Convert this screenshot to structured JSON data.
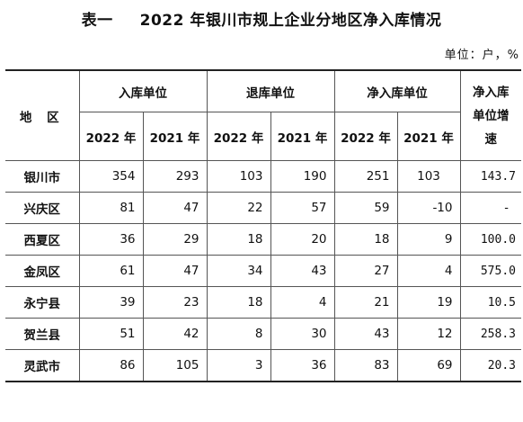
{
  "title": {
    "prefix": "表一",
    "main": "2022 年银川市规上企业分地区净入库情况"
  },
  "unit": "单位：户，%",
  "headers": {
    "region": "地 区",
    "group_entry": "入库单位",
    "group_exit": "退库单位",
    "group_net": "净入库单位",
    "growth": [
      "净入库",
      "单位增",
      "速"
    ],
    "y2022": "2022 年",
    "y2021": "2021 年"
  },
  "rows": [
    {
      "region": "银川市",
      "entry_2022": "354",
      "entry_2021": "293",
      "exit_2022": "103",
      "exit_2021": "190",
      "net_2022": "251",
      "net_2021": "103",
      "growth": "143.7"
    },
    {
      "region": "兴庆区",
      "entry_2022": "81",
      "entry_2021": "47",
      "exit_2022": "22",
      "exit_2021": "57",
      "net_2022": "59",
      "net_2021": "-10",
      "growth": "-"
    },
    {
      "region": "西夏区",
      "entry_2022": "36",
      "entry_2021": "29",
      "exit_2022": "18",
      "exit_2021": "20",
      "net_2022": "18",
      "net_2021": "9",
      "growth": "100.0"
    },
    {
      "region": "金凤区",
      "entry_2022": "61",
      "entry_2021": "47",
      "exit_2022": "34",
      "exit_2021": "43",
      "net_2022": "27",
      "net_2021": "4",
      "growth": "575.0"
    },
    {
      "region": "永宁县",
      "entry_2022": "39",
      "entry_2021": "23",
      "exit_2022": "18",
      "exit_2021": "4",
      "net_2022": "21",
      "net_2021": "19",
      "growth": "10.5"
    },
    {
      "region": "贺兰县",
      "entry_2022": "51",
      "entry_2021": "42",
      "exit_2022": "8",
      "exit_2021": "30",
      "net_2022": "43",
      "net_2021": "12",
      "growth": "258.3"
    },
    {
      "region": "灵武市",
      "entry_2022": "86",
      "entry_2021": "105",
      "exit_2022": "3",
      "exit_2021": "36",
      "net_2022": "83",
      "net_2021": "69",
      "growth": "20.3"
    }
  ]
}
